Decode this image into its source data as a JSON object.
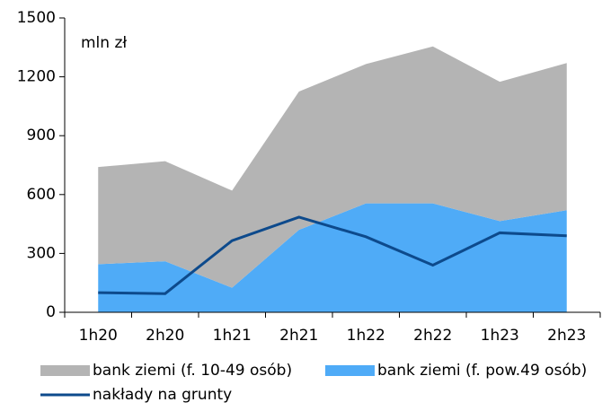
{
  "chart_data": {
    "type": "stacked_area_line",
    "annotation": "mln zł",
    "categories": [
      "1h20",
      "2h20",
      "1h21",
      "2h21",
      "1h22",
      "2h22",
      "1h23",
      "2h23"
    ],
    "series": [
      {
        "name": "bank ziemi (f. pow.49 osób)",
        "color": "#4fabf7",
        "kind": "area",
        "values": [
          245,
          260,
          125,
          420,
          555,
          555,
          465,
          520
        ]
      },
      {
        "name": "bank ziemi (f. 10-49 osób)",
        "color": "#b4b4b4",
        "kind": "area",
        "values": [
          495,
          510,
          495,
          705,
          710,
          800,
          710,
          750
        ]
      },
      {
        "name": "nakłady na grunty",
        "color": "#0d4a8c",
        "kind": "line",
        "values": [
          100,
          95,
          365,
          485,
          385,
          240,
          405,
          390
        ]
      }
    ],
    "ylim": [
      0,
      1500
    ],
    "yticks": [
      0,
      300,
      600,
      900,
      1200,
      1500
    ]
  }
}
